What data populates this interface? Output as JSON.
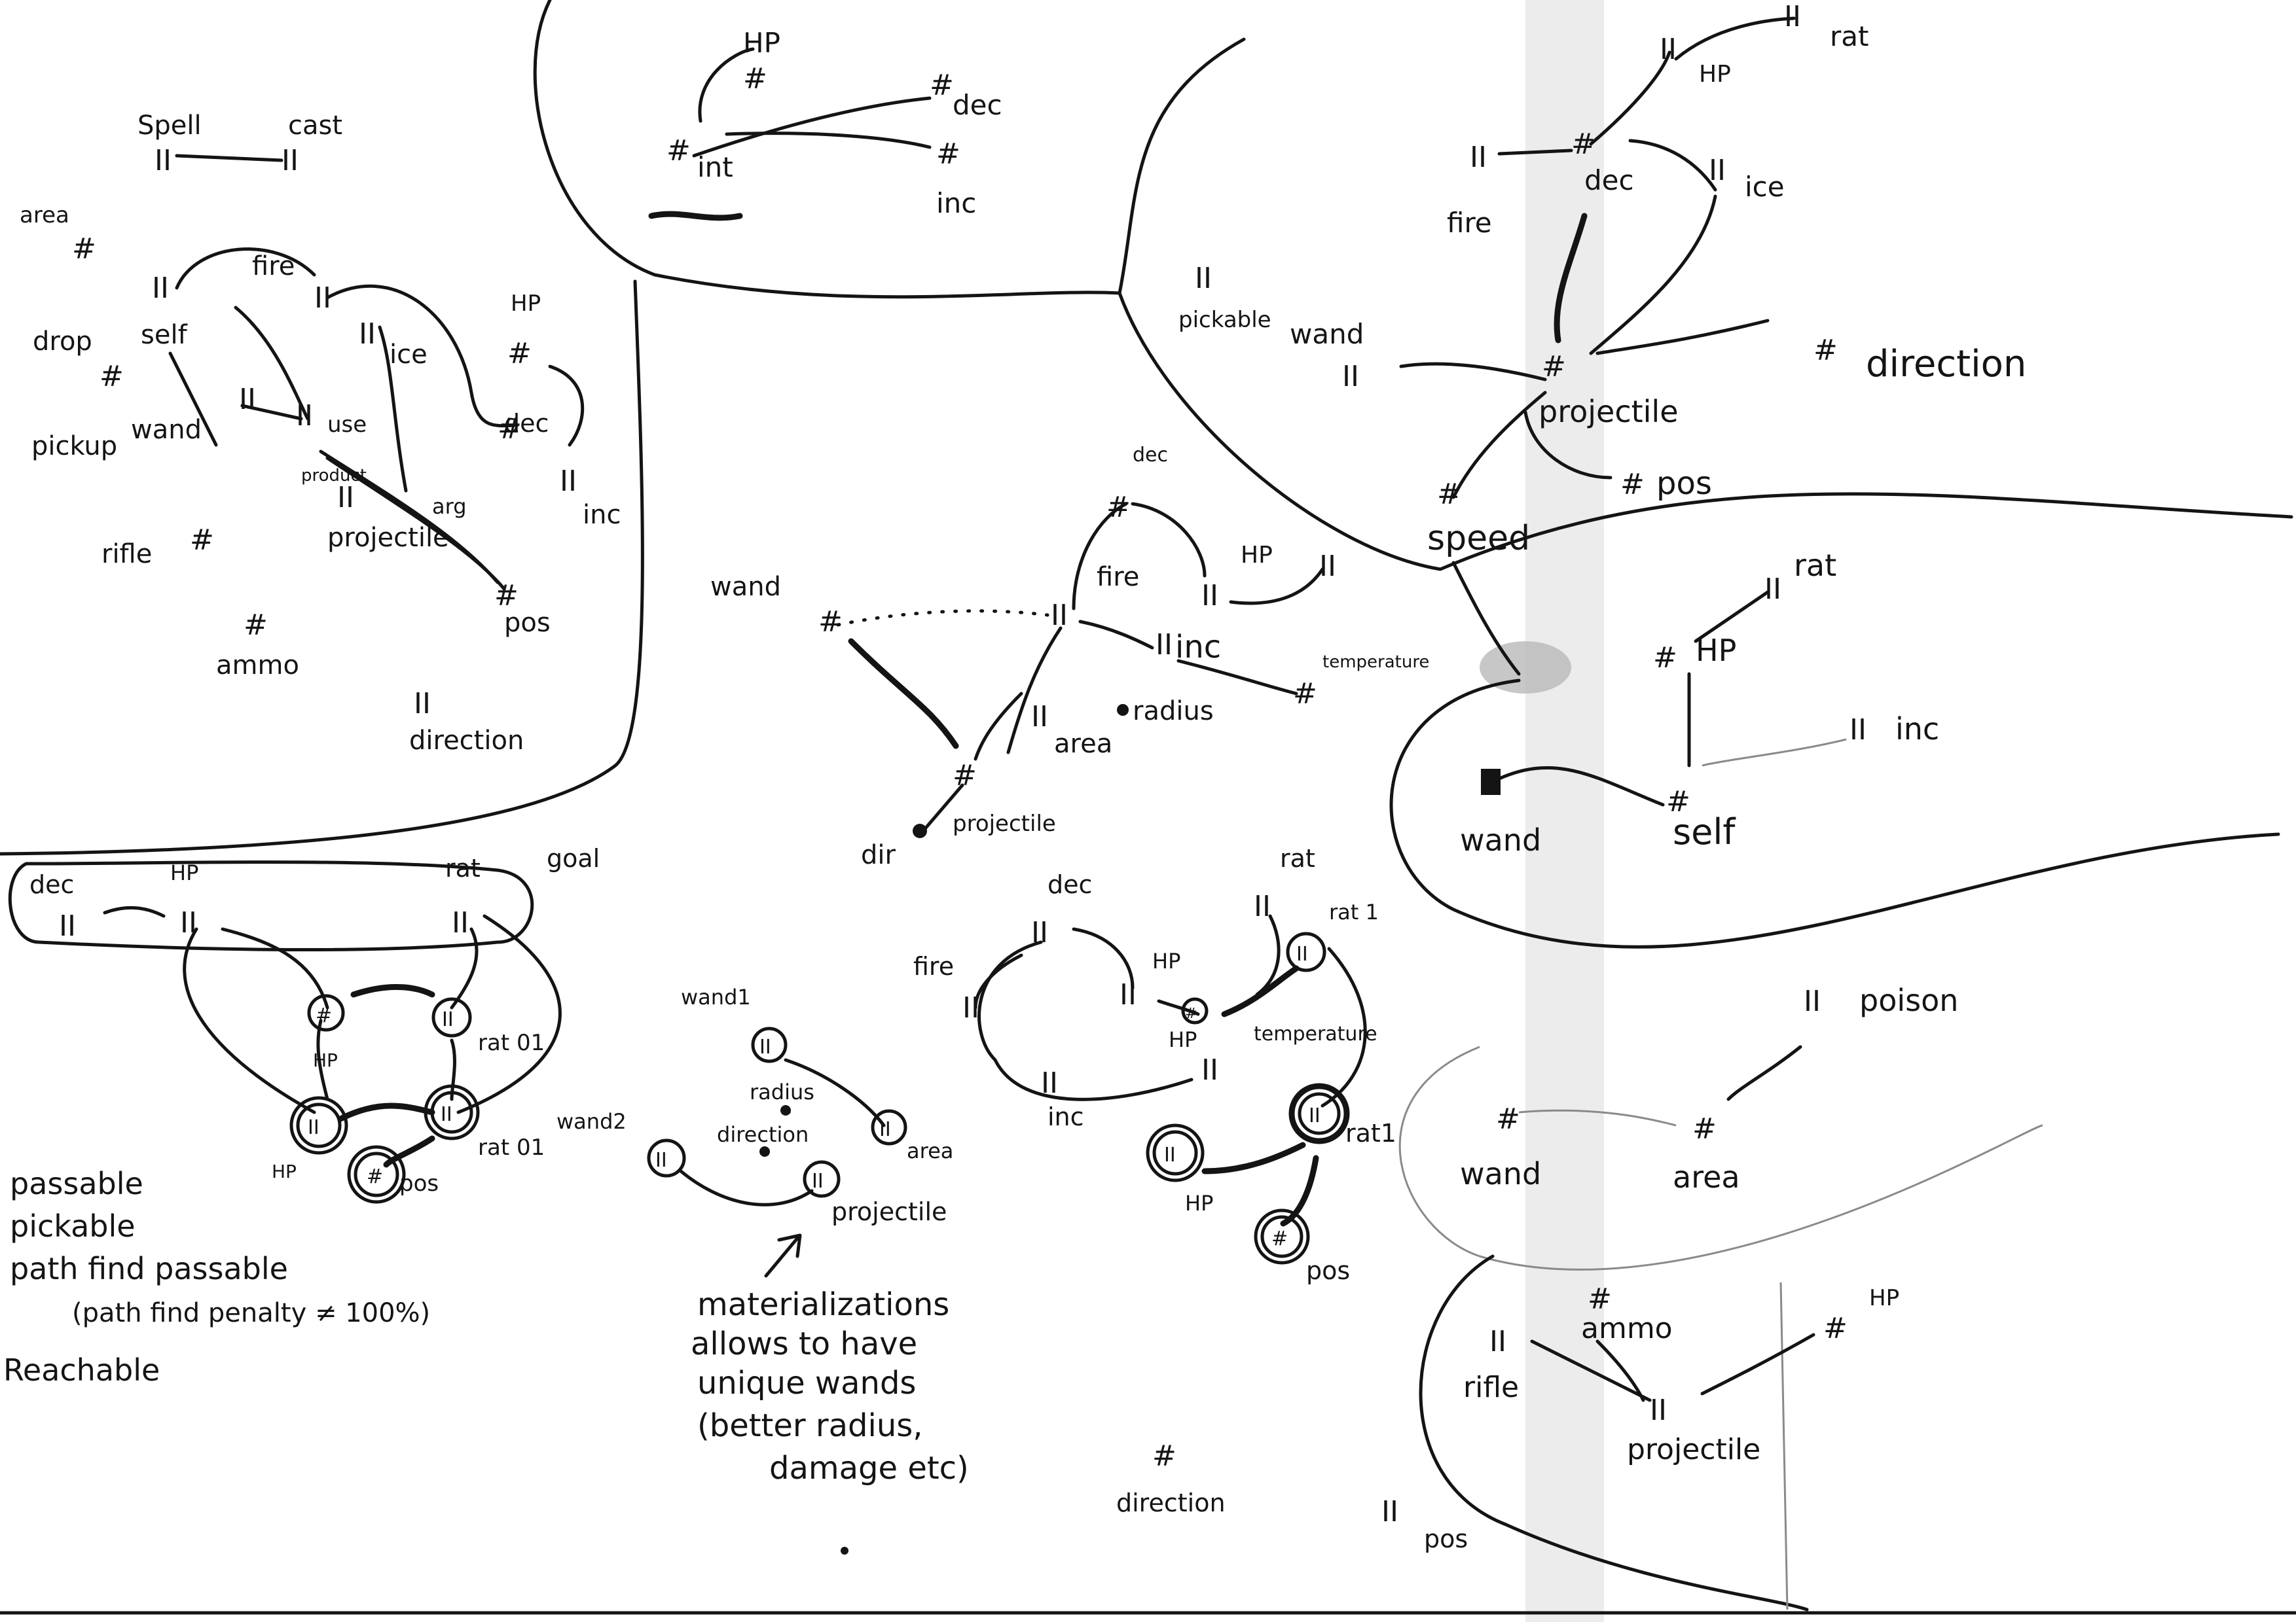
{
  "canvas": {
    "background": "#ffffff",
    "ink": "#141414",
    "smudge": "#9a9a9a"
  },
  "node_glyph": "II",
  "hash_glyph": "#",
  "labels": {
    "intro": {
      "hp": "HP",
      "dec": "dec",
      "int": "int",
      "inc": "inc"
    },
    "spellbook": {
      "spell": "Spell",
      "cast": "cast",
      "area": "area",
      "fire": "fire",
      "self": "self",
      "drop": "drop",
      "pickup": "pickup",
      "wand": "wand",
      "use": "use",
      "ice": "ice",
      "hp": "HP",
      "dec": "dec",
      "inc": "inc",
      "product": "product",
      "arg": "arg",
      "projectile": "projectile",
      "pos": "pos",
      "rifle": "rifle",
      "ammo": "ammo",
      "direction": "direction"
    },
    "wand_mid": {
      "dec": "dec",
      "hp": "HP",
      "wand": "wand",
      "fire": "fire",
      "inc": "inc",
      "temperature": "temperature",
      "radius": "radius",
      "area": "area",
      "dir": "dir",
      "projectile": "projectile"
    },
    "right_top": {
      "rat": "rat",
      "hp": "HP",
      "dec": "dec",
      "fire": "fire",
      "ice": "ice",
      "pickable": "pickable",
      "wand": "wand",
      "direction": "direction",
      "projectile": "projectile",
      "pos": "pos",
      "speed": "speed"
    },
    "right_mid": {
      "rat": "rat",
      "hp": "HP",
      "inc": "inc",
      "wand": "wand",
      "self": "self"
    },
    "right_poison": {
      "poison": "poison",
      "wand": "wand",
      "area": "area"
    },
    "right_rifle": {
      "ammo": "ammo",
      "hp": "HP",
      "rifle": "rifle",
      "projectile": "projectile",
      "pos": "pos"
    },
    "goal": {
      "dec": "dec",
      "hp": "HP",
      "rat": "rat",
      "goal": "goal",
      "rat_01": "rat 01",
      "rat_01b": "rat 01",
      "pos": "pos"
    },
    "materialized_wand": {
      "wand1": "wand1",
      "radius": "radius",
      "area": "area",
      "wand2": "wand2",
      "direction": "direction",
      "projectile": "projectile"
    },
    "rat_graph": {
      "rat": "rat",
      "rat1": "rat 1",
      "dec": "dec",
      "fire": "fire",
      "hp": "HP",
      "temperature": "temperature",
      "inc": "inc",
      "rat1b": "rat1",
      "pos": "pos"
    },
    "properties": [
      "passable",
      "pickable",
      "path find passable",
      "(path find penalty ≠ 100%)",
      "Reachable"
    ],
    "note": [
      "materializations",
      "allows to have",
      "unique wands",
      "(better radius,",
      "damage etc)"
    ],
    "bottom": {
      "direction": "direction",
      "pos": "pos"
    }
  }
}
